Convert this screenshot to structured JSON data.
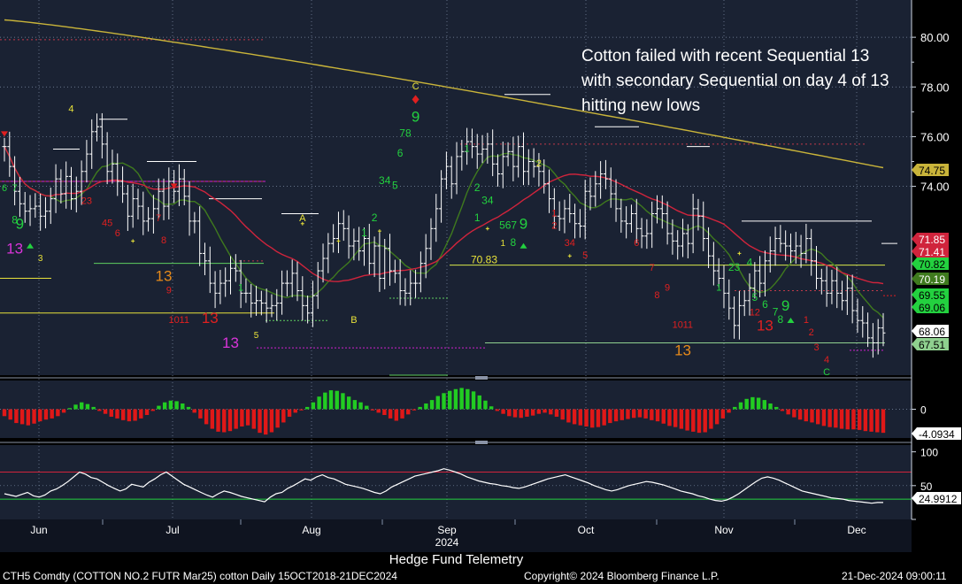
{
  "annotation": "Cotton failed with recent Sequential 13 with secondary Sequential on day 4 of 13 hitting new lows",
  "footer": {
    "center": "Hedge Fund Telemetry",
    "left": "CTH5 Comdty (COTTON NO.2 FUTR  Mar25) cotton  Daily 15OCT2018-21DEC2024",
    "mid": "Copyright© 2024 Bloomberg Finance L.P.",
    "right": "21-Dec-2024 09:00:11"
  },
  "colors": {
    "background": "#1a2233",
    "bars": "#ffffff",
    "ma_short": "#3f7a1e",
    "ma_mid": "#d0243c",
    "ma_long": "#c9b43a",
    "countdown_green": "#23d13f",
    "countdown_red": "#e02020",
    "setup_yellow": "#e8e23a",
    "thirteen_orange": "#e68a1a",
    "thirteen_magenta": "#d934d9",
    "hist_up": "#22cc22",
    "hist_down": "#e01818"
  },
  "chart_data": [
    {
      "type": "candlestick",
      "title": "",
      "x_ticks": [
        "Jun",
        "Jul",
        "Aug",
        "Sep",
        "Oct",
        "Nov",
        "Dec"
      ],
      "x_year_label": "2024",
      "y_ticks": [
        "80.00",
        "78.00",
        "76.00",
        "74.00"
      ],
      "ylim": [
        66.4,
        81.5
      ],
      "close": [
        75.6,
        74.8,
        73.8,
        73.3,
        73.0,
        73.1,
        73.2,
        72.8,
        73.0,
        73.5,
        74.3,
        73.7,
        74.4,
        73.5,
        73.8,
        74.6,
        75.3,
        76.2,
        76.4,
        75.7,
        74.6,
        74.9,
        74.2,
        73.7,
        72.8,
        73.5,
        73.2,
        72.6,
        72.7,
        73.1,
        73.8,
        73.2,
        74.2,
        73.8,
        74.3,
        73.6,
        72.6,
        72.6,
        71.3,
        71.0,
        70.1,
        69.7,
        70.1,
        70.2,
        70.7,
        70.6,
        69.7,
        69.7,
        69.3,
        69.4,
        69.3,
        69.1,
        69.2,
        69.3,
        70.1,
        70.1,
        70.5,
        69.8,
        69.2,
        68.9,
        69.6,
        70.6,
        71.1,
        71.7,
        71.9,
        72.5,
        72.3,
        71.6,
        71.8,
        71.4,
        71.9,
        70.9,
        71.6,
        70.3,
        71.5,
        70.6,
        70.5,
        69.8,
        69.7,
        70.1,
        70.1,
        70.9,
        71.5,
        72.3,
        73.1,
        74.3,
        74.8,
        74.1,
        75.2,
        75.4,
        75.8,
        75.6,
        75.3,
        75.5,
        75.7,
        74.9,
        74.5,
        75.2,
        75.4,
        74.8,
        75.6,
        74.6,
        75.0,
        74.8,
        74.6,
        74.1,
        73.5,
        72.8,
        72.7,
        73.1,
        72.9,
        72.5,
        72.4,
        73.8,
        73.6,
        74.1,
        74.5,
        74.3,
        73.7,
        73.1,
        72.6,
        72.5,
        72.9,
        72.3,
        72.0,
        72.1,
        72.9,
        73.1,
        72.9,
        72.1,
        71.8,
        71.6,
        72.1,
        71.7,
        73.1,
        72.8,
        71.9,
        71.2,
        70.6,
        70.3,
        69.7,
        69.1,
        68.4,
        69.2,
        69.4,
        69.9,
        70.6,
        70.1,
        71.0,
        71.4,
        71.9,
        71.7,
        71.6,
        71.4,
        71.6,
        71.3,
        71.9,
        71.0,
        70.3,
        70.2,
        69.7,
        70.2,
        69.7,
        69.4,
        69.9,
        69.0,
        68.6,
        68.5,
        67.9,
        67.7,
        68.3,
        68.1
      ],
      "ma_short_end": 70.19,
      "ma_mid_end": 71.41,
      "ma_long_end": 74.75,
      "level_line": 70.83,
      "level_label": "70.83",
      "right_labels": [
        "74.75",
        "71.85",
        "71.41",
        "70.82",
        "70.19",
        "69.55",
        "69.06",
        "68.06",
        "67.51"
      ],
      "td_labels": [
        {
          "t": "13",
          "i": 2,
          "v": 71.3,
          "c": "thirteen_magenta",
          "s": 17
        },
        {
          "t": "9",
          "i": 3,
          "v": 72.3,
          "c": "countdown_green",
          "s": 17
        },
        {
          "t": "8",
          "i": 2,
          "v": 72.5,
          "c": "countdown_green",
          "s": 12
        },
        {
          "t": "6",
          "i": 0,
          "v": 73.8,
          "c": "countdown_green",
          "s": 11
        },
        {
          "t": "7",
          "i": 2,
          "v": 73.8,
          "c": "countdown_green",
          "s": 11
        },
        {
          "t": "3",
          "i": 7,
          "v": 71.0,
          "c": "setup_yellow",
          "s": 10
        },
        {
          "t": "4",
          "i": 13,
          "v": 77.0,
          "c": "setup_yellow",
          "s": 11
        },
        {
          "t": "23",
          "i": 16,
          "v": 73.3,
          "c": "countdown_red",
          "s": 11
        },
        {
          "t": "45",
          "i": 20,
          "v": 72.4,
          "c": "countdown_red",
          "s": 11
        },
        {
          "t": "6",
          "i": 22,
          "v": 72.0,
          "c": "countdown_red",
          "s": 11
        },
        {
          "t": "7",
          "i": 30,
          "v": 72.6,
          "c": "countdown_red",
          "s": 11
        },
        {
          "t": "8",
          "i": 31,
          "v": 71.7,
          "c": "countdown_red",
          "s": 11
        },
        {
          "t": "13",
          "i": 31,
          "v": 70.2,
          "c": "thirteen_orange",
          "s": 17
        },
        {
          "t": "9",
          "i": 32,
          "v": 69.7,
          "c": "countdown_red",
          "s": 11
        },
        {
          "t": "10",
          "i": 33,
          "v": 68.5,
          "c": "countdown_red",
          "s": 11
        },
        {
          "t": "11",
          "i": 35,
          "v": 68.5,
          "c": "countdown_red",
          "s": 11
        },
        {
          "t": "13",
          "i": 40,
          "v": 68.5,
          "c": "countdown_red",
          "s": 17
        },
        {
          "t": "13",
          "i": 44,
          "v": 67.5,
          "c": "thirteen_magenta",
          "s": 17
        },
        {
          "t": "1",
          "i": 46,
          "v": 69.8,
          "c": "countdown_green",
          "s": 11
        },
        {
          "t": "5",
          "i": 49,
          "v": 67.9,
          "c": "setup_yellow",
          "s": 10
        },
        {
          "t": "A",
          "i": 58,
          "v": 72.6,
          "c": "setup_yellow",
          "s": 11
        },
        {
          "t": "B",
          "i": 68,
          "v": 68.5,
          "c": "setup_yellow",
          "s": 11
        },
        {
          "t": "1",
          "i": 70,
          "v": 72.0,
          "c": "countdown_green",
          "s": 12
        },
        {
          "t": "2",
          "i": 72,
          "v": 72.6,
          "c": "countdown_green",
          "s": 12
        },
        {
          "t": "34",
          "i": 74,
          "v": 74.1,
          "c": "countdown_green",
          "s": 12
        },
        {
          "t": "5",
          "i": 76,
          "v": 73.9,
          "c": "countdown_green",
          "s": 12
        },
        {
          "t": "6",
          "i": 77,
          "v": 75.2,
          "c": "countdown_green",
          "s": 12
        },
        {
          "t": "78",
          "i": 78,
          "v": 76.0,
          "c": "countdown_green",
          "s": 12
        },
        {
          "t": "9",
          "i": 80,
          "v": 76.6,
          "c": "countdown_green",
          "s": 17
        },
        {
          "t": "C",
          "i": 80,
          "v": 77.9,
          "c": "setup_yellow",
          "s": 11
        },
        {
          "t": "1",
          "i": 90,
          "v": 75.4,
          "c": "countdown_green",
          "s": 11
        },
        {
          "t": "2",
          "i": 92,
          "v": 73.8,
          "c": "countdown_green",
          "s": 12
        },
        {
          "t": "34",
          "i": 94,
          "v": 73.3,
          "c": "countdown_green",
          "s": 12
        },
        {
          "t": "1",
          "i": 92,
          "v": 72.6,
          "c": "countdown_green",
          "s": 12
        },
        {
          "t": "567",
          "i": 98,
          "v": 72.3,
          "c": "countdown_green",
          "s": 12
        },
        {
          "t": "9",
          "i": 101,
          "v": 72.3,
          "c": "countdown_green",
          "s": 17
        },
        {
          "t": "1",
          "i": 97,
          "v": 71.6,
          "c": "setup_yellow",
          "s": 10
        },
        {
          "t": "8",
          "i": 99,
          "v": 71.6,
          "c": "countdown_green",
          "s": 12
        },
        {
          "t": "2",
          "i": 104,
          "v": 74.8,
          "c": "setup_yellow",
          "s": 11
        },
        {
          "t": "1",
          "i": 107,
          "v": 72.8,
          "c": "countdown_red",
          "s": 11
        },
        {
          "t": "2",
          "i": 107,
          "v": 72.3,
          "c": "countdown_red",
          "s": 11
        },
        {
          "t": "34",
          "i": 110,
          "v": 71.6,
          "c": "countdown_red",
          "s": 11
        },
        {
          "t": "5",
          "i": 113,
          "v": 71.1,
          "c": "countdown_red",
          "s": 11
        },
        {
          "t": "6",
          "i": 123,
          "v": 71.6,
          "c": "countdown_red",
          "s": 11
        },
        {
          "t": "7",
          "i": 126,
          "v": 70.6,
          "c": "countdown_red",
          "s": 11
        },
        {
          "t": "8",
          "i": 127,
          "v": 69.5,
          "c": "countdown_red",
          "s": 11
        },
        {
          "t": "9",
          "i": 129,
          "v": 69.8,
          "c": "countdown_red",
          "s": 11
        },
        {
          "t": "10",
          "i": 131,
          "v": 68.3,
          "c": "countdown_red",
          "s": 11
        },
        {
          "t": "11",
          "i": 133,
          "v": 68.3,
          "c": "countdown_red",
          "s": 11
        },
        {
          "t": "13",
          "i": 132,
          "v": 67.2,
          "c": "thirteen_orange",
          "s": 17
        },
        {
          "t": "1",
          "i": 139,
          "v": 69.8,
          "c": "countdown_green",
          "s": 11
        },
        {
          "t": "23",
          "i": 142,
          "v": 70.6,
          "c": "countdown_green",
          "s": 12
        },
        {
          "t": "4",
          "i": 145,
          "v": 70.8,
          "c": "countdown_green",
          "s": 12
        },
        {
          "t": "5",
          "i": 146,
          "v": 69.4,
          "c": "countdown_green",
          "s": 12
        },
        {
          "t": "6",
          "i": 148,
          "v": 69.1,
          "c": "countdown_green",
          "s": 12
        },
        {
          "t": "7",
          "i": 150,
          "v": 68.8,
          "c": "countdown_green",
          "s": 12
        },
        {
          "t": "9",
          "i": 152,
          "v": 69.0,
          "c": "countdown_green",
          "s": 17
        },
        {
          "t": "12",
          "i": 146,
          "v": 68.8,
          "c": "countdown_red",
          "s": 11
        },
        {
          "t": "13",
          "i": 148,
          "v": 68.2,
          "c": "countdown_red",
          "s": 17
        },
        {
          "t": "8",
          "i": 151,
          "v": 68.5,
          "c": "countdown_green",
          "s": 12
        },
        {
          "t": "1",
          "i": 156,
          "v": 68.5,
          "c": "countdown_red",
          "s": 11
        },
        {
          "t": "2",
          "i": 157,
          "v": 68.0,
          "c": "countdown_red",
          "s": 11
        },
        {
          "t": "3",
          "i": 158,
          "v": 67.4,
          "c": "countdown_red",
          "s": 11
        },
        {
          "t": "4",
          "i": 160,
          "v": 66.9,
          "c": "countdown_red",
          "s": 11
        },
        {
          "t": "C",
          "i": 160,
          "v": 66.4,
          "c": "countdown_green",
          "s": 11
        }
      ]
    },
    {
      "type": "bar",
      "title": "",
      "y_ticks": [
        "0"
      ],
      "last_value_label": "-4.0934",
      "values": [
        -1.2,
        -1.8,
        -2.4,
        -2.6,
        -2.8,
        -2.5,
        -2.1,
        -1.8,
        -1.6,
        -1.2,
        -0.6,
        0.2,
        0.8,
        1.2,
        0.9,
        0.4,
        -0.3,
        -0.8,
        -1.3,
        -1.6,
        -1.9,
        -2.1,
        -2.0,
        -1.6,
        -1.0,
        -0.3,
        0.6,
        1.2,
        1.5,
        1.4,
        1.0,
        0.4,
        -0.6,
        -1.6,
        -2.6,
        -3.4,
        -3.9,
        -4.0,
        -3.8,
        -3.4,
        -3.0,
        -2.8,
        -3.4,
        -4.1,
        -4.4,
        -4.0,
        -3.2,
        -2.3,
        -1.3,
        -0.6,
        -0.2,
        0.4,
        1.2,
        2.2,
        2.9,
        3.3,
        3.2,
        2.8,
        2.2,
        1.6,
        1.2,
        0.6,
        -0.2,
        -0.6,
        -1.0,
        -1.6,
        -2.0,
        -1.6,
        -0.9,
        -0.2,
        0.4,
        1.0,
        1.6,
        2.3,
        2.8,
        3.2,
        3.5,
        3.7,
        3.5,
        3.1,
        2.4,
        1.5,
        0.5,
        -0.3,
        -0.8,
        -1.2,
        -1.4,
        -1.5,
        -1.3,
        -1.1,
        -0.8,
        -0.6,
        -0.9,
        -1.3,
        -1.8,
        -2.3,
        -2.6,
        -2.8,
        -3.0,
        -3.2,
        -3.1,
        -2.8,
        -2.4,
        -2.1,
        -1.9,
        -1.7,
        -1.5,
        -1.4,
        -1.6,
        -1.9,
        -2.1,
        -2.5,
        -2.9,
        -3.1,
        -3.4,
        -3.7,
        -3.9,
        -4.1,
        -4.0,
        -3.4,
        -2.6,
        -1.6,
        -0.6,
        0.4,
        1.2,
        1.8,
        2.1,
        2.0,
        1.6,
        1.0,
        0.4,
        -0.3,
        -0.9,
        -1.4,
        -1.8,
        -2.1,
        -2.3,
        -2.6,
        -2.9,
        -3.1,
        -3.2,
        -3.4,
        -3.5,
        -3.5,
        -3.6,
        -3.8,
        -3.9,
        -4.0,
        -4.1
      ],
      "ylim": [
        -5,
        5
      ]
    },
    {
      "type": "line",
      "title": "",
      "y_ticks": [
        "100",
        "50",
        "0"
      ],
      "ylim": [
        0,
        110
      ],
      "upper_band": 70,
      "lower_band": 30,
      "last_value_label": "24.9912",
      "values": [
        38,
        36,
        34,
        37,
        40,
        35,
        33,
        36,
        42,
        45,
        50,
        56,
        63,
        70,
        67,
        62,
        60,
        55,
        50,
        46,
        42,
        45,
        52,
        50,
        48,
        55,
        60,
        66,
        70,
        64,
        58,
        52,
        48,
        44,
        40,
        36,
        33,
        38,
        42,
        40,
        37,
        34,
        32,
        30,
        28,
        26,
        33,
        38,
        40,
        46,
        50,
        55,
        60,
        58,
        63,
        66,
        62,
        60,
        56,
        52,
        50,
        48,
        46,
        43,
        40,
        38,
        42,
        48,
        52,
        56,
        60,
        64,
        66,
        68,
        70,
        72,
        75,
        73,
        70,
        67,
        63,
        60,
        57,
        55,
        53,
        52,
        50,
        49,
        47,
        46,
        48,
        51,
        54,
        57,
        60,
        62,
        64,
        66,
        63,
        60,
        57,
        54,
        50,
        47,
        44,
        42,
        44,
        47,
        50,
        52,
        54,
        56,
        55,
        53,
        51,
        48,
        45,
        42,
        40,
        38,
        35,
        33,
        30,
        28,
        27,
        29,
        33,
        38,
        44,
        50,
        56,
        61,
        63,
        61,
        58,
        54,
        50,
        46,
        42,
        40,
        38,
        36,
        34,
        32,
        31,
        30,
        28,
        27,
        26,
        25,
        24,
        25,
        25
      ]
    }
  ],
  "x_ticks": [
    "Jun",
    "Jul",
    "Aug",
    "Sep",
    "Oct",
    "Nov",
    "Dec"
  ]
}
